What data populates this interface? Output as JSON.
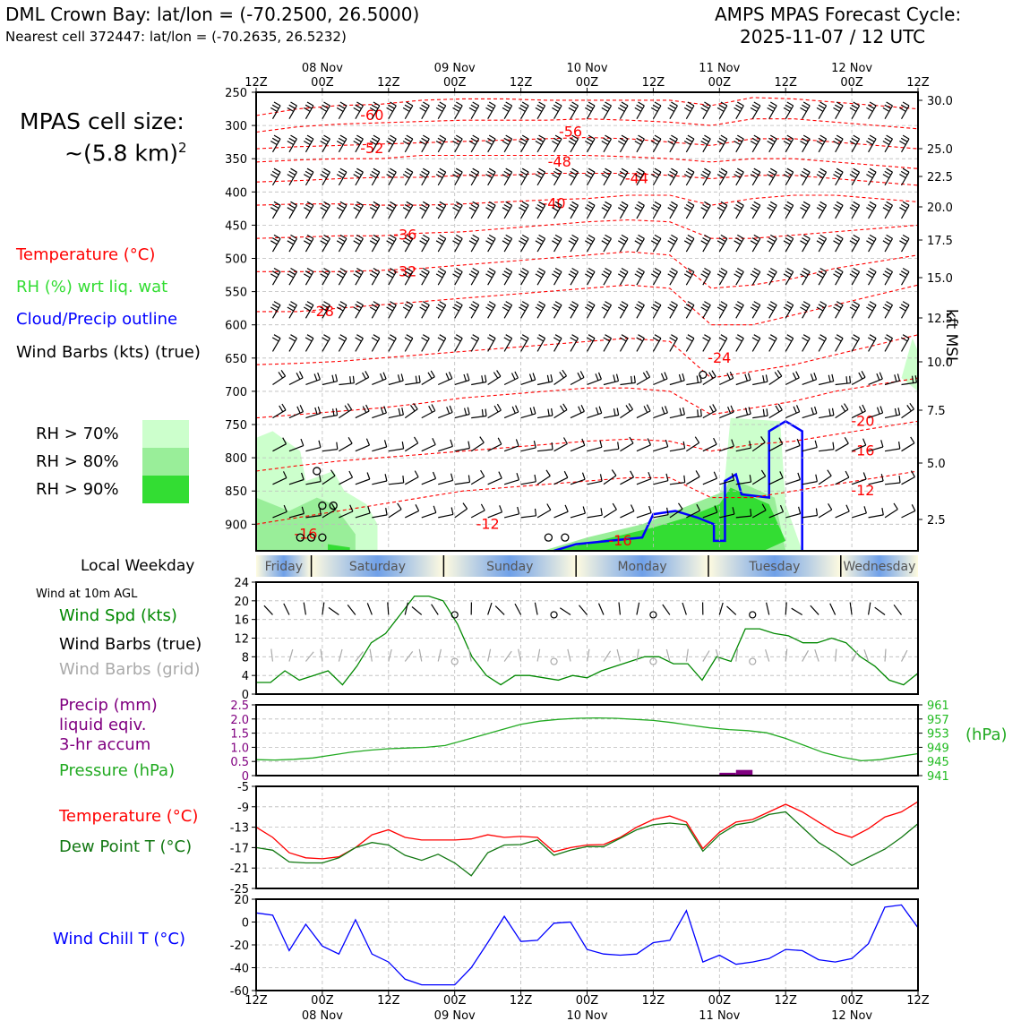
{
  "header": {
    "station": "DML Crown Bay: lat/lon = (-70.2500, 26.5000)",
    "nearest": "Nearest cell 372447: lat/lon = (-70.2635, 26.5232)",
    "cycle_line1": "AMPS MPAS Forecast Cycle:",
    "cycle_line2": "2025-11-07 / 12 UTC"
  },
  "cell_size": {
    "line1": "MPAS cell size:",
    "line2": "~(5.8 km)",
    "sup": "2"
  },
  "legend": {
    "temperature": "Temperature (°C)",
    "rh": "RH (%) wrt liq. wat",
    "cloud": "Cloud/Precip outline",
    "wind": "Wind Barbs (kts) (true)",
    "rh70": "RH > 70%",
    "rh80": "RH > 80%",
    "rh90": "RH > 90%"
  },
  "colors": {
    "temp": "#ff0000",
    "rh_text": "#33dd33",
    "cloud": "#0000ff",
    "rh70": "#ccffcc",
    "rh80": "#99ee99",
    "rh90": "#33dd33",
    "pressure": "#22aa22",
    "dewpoint": "#117711",
    "precip": "#800080",
    "windchill": "#0000ff",
    "grid_barb": "#aaaaaa"
  },
  "time_axis": {
    "ticks": [
      "12Z",
      "00Z",
      "12Z",
      "00Z",
      "12Z",
      "00Z",
      "12Z",
      "00Z",
      "12Z",
      "00Z",
      "12Z"
    ],
    "dates": [
      "08 Nov",
      "09 Nov",
      "10 Nov",
      "11 Nov",
      "12 Nov"
    ]
  },
  "weekday": {
    "label": "Local Weekday",
    "days": [
      "Friday",
      "Saturday",
      "Sunday",
      "Monday",
      "Tuesday",
      "Wednesday"
    ]
  },
  "wind10": {
    "title": "Wind at 10m AGL",
    "spd_label": "Wind Spd (kts)",
    "barbs_true_label": "Wind Barbs (true)",
    "barbs_grid_label": "Wind Barbs (grid)"
  },
  "precip_panel": {
    "label1": "Precip (mm)",
    "label2": "liquid eqiv.",
    "label3": "3-hr accum",
    "pressure_label": "Pressure (hPa)",
    "hpa": "(hPa)"
  },
  "temp_panel": {
    "temp_label": "Temperature (°C)",
    "dew_label": "Dew Point T (°C)"
  },
  "wc_panel": {
    "label": "Wind Chill T (°C)"
  },
  "right_axis": {
    "label": "kft MSL"
  },
  "chart_data": [
    {
      "type": "heatmap",
      "description_axis": "pressure-time cross section",
      "y_pressure_ticks": [
        250,
        300,
        350,
        400,
        450,
        500,
        550,
        600,
        650,
        700,
        750,
        800,
        850,
        900
      ],
      "y_kft_ticks": [
        30.0,
        25.0,
        22.5,
        20.0,
        17.5,
        15.0,
        12.5,
        10.0,
        7.5,
        5.0,
        2.5
      ],
      "temp_contour_labels": [
        "-60",
        "-56",
        "-52",
        "-48",
        "-44",
        "-40",
        "-36",
        "-32",
        "-28",
        "-24",
        "-20",
        "-16",
        "-12",
        "-12",
        "-16",
        "-16"
      ]
    },
    {
      "type": "line",
      "name": "wind10",
      "ylim": [
        0,
        24
      ],
      "yticks": [
        0,
        4,
        8,
        12,
        16,
        20,
        24
      ],
      "x_hours": [
        0,
        6,
        12,
        18,
        24,
        30,
        36,
        42,
        48,
        54,
        60,
        66,
        72,
        78,
        84,
        90,
        96,
        102,
        108,
        114,
        120
      ],
      "wind_speed_kts": [
        2.5,
        2.5,
        5,
        3,
        4,
        5,
        2,
        6,
        11,
        13,
        17,
        21,
        21,
        20,
        15,
        8,
        4,
        2,
        4,
        4,
        3.5,
        3,
        4,
        3.5,
        5,
        6,
        7,
        8,
        8,
        6.5,
        6.5,
        3,
        8,
        7,
        14,
        14,
        13,
        12.5,
        11,
        11,
        12,
        11,
        8,
        6,
        3,
        2,
        4.5
      ]
    },
    {
      "type": "bar",
      "name": "precip_pressure",
      "precip_ylim": [
        0,
        2.5
      ],
      "precip_yticks": [
        0,
        0.5,
        1.0,
        1.5,
        2.0,
        2.5
      ],
      "precip_values": [
        {
          "x_hour": 84,
          "value": 0.1
        },
        {
          "x_hour": 87,
          "value": 0.2
        }
      ],
      "pressure_ylim": [
        941,
        961
      ],
      "pressure_yticks": [
        941,
        945,
        949,
        953,
        957,
        961
      ],
      "pressure_hpa": [
        945.5,
        945.4,
        945.6,
        946,
        946.8,
        947.6,
        948.2,
        948.6,
        948.8,
        949.0,
        949.5,
        951,
        952.5,
        954,
        955.5,
        956.4,
        956.9,
        957.2,
        957.3,
        957.2,
        956.9,
        956.6,
        956,
        955.2,
        954.5,
        954,
        953.7,
        953.1,
        951.5,
        949.5,
        947.5,
        946.2,
        945.2,
        945.5,
        946.4,
        947.2
      ]
    },
    {
      "type": "line",
      "name": "temp_dewpoint",
      "ylim": [
        -25,
        -5
      ],
      "yticks": [
        -25,
        -21,
        -17,
        -13,
        -9,
        -5
      ],
      "temperature_c": [
        -13,
        -15,
        -18,
        -19,
        -19.2,
        -18.8,
        -17,
        -14.5,
        -13.5,
        -15,
        -15.5,
        -15.5,
        -15.5,
        -15.3,
        -14.5,
        -15,
        -14.8,
        -15,
        -17.8,
        -17,
        -16.5,
        -16.4,
        -15,
        -13,
        -11.5,
        -10.8,
        -12,
        -17.2,
        -14,
        -12,
        -11.5,
        -10,
        -8.5,
        -10,
        -12,
        -14,
        -15,
        -13.3,
        -11,
        -10,
        -8
      ],
      "dewpoint_c": [
        -17,
        -17.5,
        -19.8,
        -20,
        -20,
        -19,
        -17,
        -16,
        -16.5,
        -18.5,
        -19.5,
        -18.3,
        -20,
        -22.5,
        -18,
        -16.5,
        -16.4,
        -15.5,
        -18.5,
        -17.5,
        -16.8,
        -16.8,
        -15.2,
        -13.5,
        -12.5,
        -12.2,
        -12.5,
        -17.7,
        -14.5,
        -12.5,
        -12,
        -10.5,
        -10,
        -13,
        -16,
        -18,
        -20.5,
        -18.9,
        -17.3,
        -15,
        -12.3
      ]
    },
    {
      "type": "line",
      "name": "windchill",
      "ylim": [
        -60,
        20
      ],
      "yticks": [
        -60,
        -40,
        -20,
        0,
        20
      ],
      "windchill_c": [
        8,
        6,
        -25,
        -2,
        -21,
        -28,
        2,
        -28,
        -35,
        -50,
        -55,
        -55,
        -55,
        -40,
        -18,
        5,
        -17,
        -16,
        -1,
        0,
        -24,
        -28,
        -29,
        -28,
        -18,
        -16,
        10,
        -35,
        -29,
        -37,
        -35,
        -32,
        -24,
        -25,
        -33,
        -35,
        -32,
        -19,
        13,
        15,
        -5
      ]
    }
  ]
}
